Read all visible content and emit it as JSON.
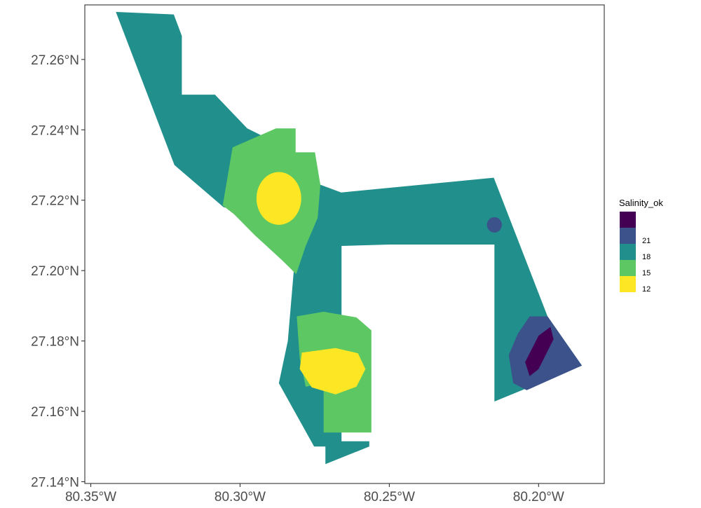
{
  "chart_data": {
    "type": "heatmap",
    "title": "",
    "xlabel": "",
    "ylabel": "",
    "x_range_deg_east": [
      -80.352,
      -80.178
    ],
    "y_range_deg_north": [
      27.1395,
      27.2755
    ],
    "x_ticks": [
      {
        "value": -80.35,
        "label": "80.35°W"
      },
      {
        "value": -80.3,
        "label": "80.30°W"
      },
      {
        "value": -80.25,
        "label": "80.25°W"
      },
      {
        "value": -80.2,
        "label": "80.20°W"
      }
    ],
    "y_ticks": [
      {
        "value": 27.14,
        "label": "27.14°N"
      },
      {
        "value": 27.16,
        "label": "27.16°N"
      },
      {
        "value": 27.18,
        "label": "27.18°N"
      },
      {
        "value": 27.2,
        "label": "27.20°N"
      },
      {
        "value": 27.22,
        "label": "27.22°N"
      },
      {
        "value": 27.24,
        "label": "27.24°N"
      },
      {
        "value": 27.26,
        "label": "27.26°N"
      }
    ],
    "grid": false,
    "legend": {
      "title": "Salinity_ok",
      "position": "right",
      "classes": [
        {
          "label": "",
          "color": "#440154"
        },
        {
          "label": "21",
          "color": "#3b528b"
        },
        {
          "label": "18",
          "color": "#21908c"
        },
        {
          "label": "15",
          "color": "#5dc863"
        },
        {
          "label": "12",
          "color": "#fde725"
        }
      ]
    },
    "regions": [
      {
        "class_color": "#21908c",
        "kind": "polygon",
        "points": [
          [
            -80.3416,
            27.2735
          ],
          [
            -80.3222,
            27.2728
          ],
          [
            -80.3195,
            27.2667
          ],
          [
            -80.3195,
            27.25
          ],
          [
            -80.3084,
            27.25
          ],
          [
            -80.2976,
            27.2404
          ],
          [
            -80.2814,
            27.2336
          ],
          [
            -80.2731,
            27.2244
          ],
          [
            -80.2661,
            27.2222
          ],
          [
            -80.215,
            27.2264
          ],
          [
            -80.197,
            27.187
          ],
          [
            -80.1855,
            27.173
          ],
          [
            -80.2148,
            27.1628
          ],
          [
            -80.2148,
            27.2074
          ],
          [
            -80.25,
            27.2074
          ],
          [
            -80.266,
            27.207
          ],
          [
            -80.266,
            27.1515
          ],
          [
            -80.2567,
            27.1515
          ],
          [
            -80.2567,
            27.15
          ],
          [
            -80.2714,
            27.145
          ],
          [
            -80.2714,
            27.15
          ],
          [
            -80.2752,
            27.15
          ],
          [
            -80.287,
            27.168
          ],
          [
            -80.284,
            27.18
          ],
          [
            -80.282,
            27.2
          ],
          [
            -80.2865,
            27.215
          ],
          [
            -80.3055,
            27.218
          ],
          [
            -80.322,
            27.23
          ]
        ]
      },
      {
        "class_color": "#5dc863",
        "kind": "polygon",
        "points": [
          [
            -80.3058,
            27.2185
          ],
          [
            -80.3025,
            27.235
          ],
          [
            -80.288,
            27.2404
          ],
          [
            -80.2814,
            27.2404
          ],
          [
            -80.2814,
            27.2336
          ],
          [
            -80.2749,
            27.2336
          ],
          [
            -80.2731,
            27.2244
          ],
          [
            -80.274,
            27.215
          ],
          [
            -80.278,
            27.207
          ],
          [
            -80.2812,
            27.199
          ],
          [
            -80.286,
            27.203
          ],
          [
            -80.295,
            27.21
          ],
          [
            -80.302,
            27.216
          ]
        ]
      },
      {
        "class_color": "#5dc863",
        "kind": "polygon",
        "points": [
          [
            -80.281,
            27.187
          ],
          [
            -80.272,
            27.1883
          ],
          [
            -80.261,
            27.1867
          ],
          [
            -80.256,
            27.183
          ],
          [
            -80.256,
            27.154
          ],
          [
            -80.272,
            27.154
          ],
          [
            -80.272,
            27.168
          ],
          [
            -80.278,
            27.167
          ],
          [
            -80.28,
            27.175
          ]
        ]
      },
      {
        "class_color": "#fde725",
        "kind": "ellipse",
        "cx": -80.287,
        "cy": 27.2205,
        "rx": 0.0075,
        "ry": 0.0075
      },
      {
        "class_color": "#fde725",
        "kind": "polygon",
        "points": [
          [
            -80.2793,
            27.1767
          ],
          [
            -80.268,
            27.178
          ],
          [
            -80.2605,
            27.1765
          ],
          [
            -80.258,
            27.172
          ],
          [
            -80.261,
            27.167
          ],
          [
            -80.268,
            27.1648
          ],
          [
            -80.276,
            27.1668
          ],
          [
            -80.28,
            27.172
          ]
        ]
      },
      {
        "class_color": "#3b528b",
        "kind": "polygon",
        "points": [
          [
            -80.203,
            27.187
          ],
          [
            -80.197,
            27.187
          ],
          [
            -80.1855,
            27.173
          ],
          [
            -80.204,
            27.166
          ],
          [
            -80.2085,
            27.168
          ],
          [
            -80.21,
            27.176
          ],
          [
            -80.207,
            27.182
          ]
        ]
      },
      {
        "class_color": "#3b528b",
        "kind": "ellipse",
        "cx": -80.2148,
        "cy": 27.213,
        "rx": 0.0025,
        "ry": 0.0022
      },
      {
        "class_color": "#440154",
        "kind": "polygon",
        "points": [
          [
            -80.196,
            27.184
          ],
          [
            -80.195,
            27.1805
          ],
          [
            -80.2,
            27.172
          ],
          [
            -80.203,
            27.17
          ],
          [
            -80.2045,
            27.174
          ],
          [
            -80.2,
            27.1815
          ]
        ]
      }
    ]
  }
}
